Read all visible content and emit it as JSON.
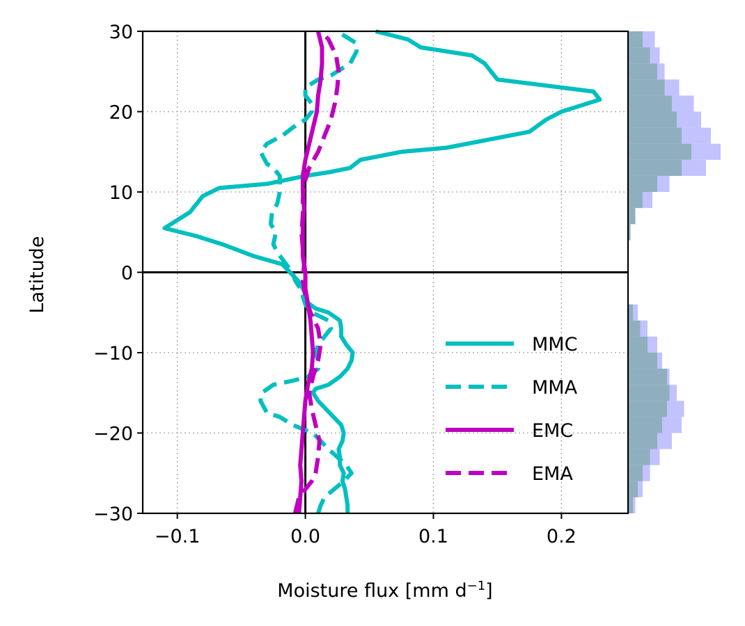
{
  "chart_data": {
    "type": "line",
    "xlabel": "Moisture flux [mm d",
    "xlabel_sup": "−1",
    "xlabel_end": "]",
    "ylabel": "Latitude",
    "xlim": [
      -0.127,
      0.252
    ],
    "ylim": [
      -30,
      30
    ],
    "xticks": [
      -0.1,
      0.0,
      0.1,
      0.2
    ],
    "xtick_labels": [
      "−0.1",
      "0.0",
      "0.1",
      "0.2"
    ],
    "yticks": [
      -30,
      -20,
      -10,
      0,
      10,
      20,
      30
    ],
    "ytick_labels": [
      "−30",
      "−20",
      "−10",
      "0",
      "10",
      "20",
      "30"
    ],
    "grid": true,
    "legend_position": "lower-right",
    "reference_lines": {
      "x": 0,
      "y": 0
    },
    "series": [
      {
        "name": "MMC",
        "color": "#00bfbf",
        "style": "solid",
        "points": [
          [
            0.033,
            -30
          ],
          [
            0.033,
            -29
          ],
          [
            0.032,
            -28
          ],
          [
            0.031,
            -27
          ],
          [
            0.029,
            -26
          ],
          [
            0.03,
            -25
          ],
          [
            0.027,
            -24
          ],
          [
            0.027,
            -23
          ],
          [
            0.026,
            -22
          ],
          [
            0.029,
            -21
          ],
          [
            0.03,
            -20
          ],
          [
            0.028,
            -19
          ],
          [
            0.022,
            -18
          ],
          [
            0.016,
            -17
          ],
          [
            0.01,
            -16
          ],
          [
            0.006,
            -15
          ],
          [
            0.008,
            -14.5
          ],
          [
            0.018,
            -14
          ],
          [
            0.027,
            -13
          ],
          [
            0.033,
            -12
          ],
          [
            0.036,
            -11
          ],
          [
            0.037,
            -10
          ],
          [
            0.032,
            -9
          ],
          [
            0.028,
            -8
          ],
          [
            0.028,
            -7
          ],
          [
            0.027,
            -6
          ],
          [
            0.018,
            -5
          ],
          [
            0.008,
            -4.5
          ],
          [
            0.002,
            -3.8
          ],
          [
            0.001,
            -3
          ],
          [
            -0.002,
            -2
          ],
          [
            -0.006,
            -1
          ],
          [
            -0.012,
            0
          ],
          [
            -0.018,
            1
          ],
          [
            -0.04,
            2
          ],
          [
            -0.065,
            3.5
          ],
          [
            -0.085,
            4.5
          ],
          [
            -0.11,
            5.5
          ],
          [
            -0.1,
            6.5
          ],
          [
            -0.09,
            7.5
          ],
          [
            -0.085,
            8.5
          ],
          [
            -0.08,
            9.5
          ],
          [
            -0.067,
            10.5
          ],
          [
            -0.03,
            11
          ],
          [
            0.0,
            12
          ],
          [
            0.02,
            12.5
          ],
          [
            0.035,
            13
          ],
          [
            0.043,
            14
          ],
          [
            0.075,
            15
          ],
          [
            0.11,
            15.5
          ],
          [
            0.175,
            17.5
          ],
          [
            0.188,
            19
          ],
          [
            0.2,
            20
          ],
          [
            0.23,
            21.5
          ],
          [
            0.225,
            22.5
          ],
          [
            0.15,
            24
          ],
          [
            0.145,
            25
          ],
          [
            0.14,
            26
          ],
          [
            0.13,
            27
          ],
          [
            0.09,
            28
          ],
          [
            0.08,
            29
          ],
          [
            0.055,
            30
          ]
        ]
      },
      {
        "name": "MMA",
        "color": "#00bfbf",
        "style": "dashed",
        "points": [
          [
            0.01,
            -30
          ],
          [
            0.012,
            -29
          ],
          [
            0.015,
            -28
          ],
          [
            0.03,
            -26
          ],
          [
            0.036,
            -25
          ],
          [
            0.032,
            -24
          ],
          [
            0.025,
            -23
          ],
          [
            0.018,
            -22
          ],
          [
            0.012,
            -21
          ],
          [
            0.006,
            -20
          ],
          [
            -0.01,
            -19
          ],
          [
            -0.02,
            -18
          ],
          [
            -0.03,
            -17.5
          ],
          [
            -0.035,
            -16
          ],
          [
            -0.034,
            -15
          ],
          [
            -0.025,
            -14
          ],
          [
            -0.01,
            -13.5
          ],
          [
            0.002,
            -13
          ],
          [
            0.01,
            -12
          ],
          [
            0.01,
            -11
          ],
          [
            0.008,
            -10
          ],
          [
            0.01,
            -9
          ],
          [
            0.015,
            -8
          ],
          [
            0.02,
            -7
          ],
          [
            0.018,
            -6
          ],
          [
            0.005,
            -5
          ],
          [
            0.0,
            -4
          ],
          [
            -0.002,
            -3
          ],
          [
            -0.004,
            -2
          ],
          [
            -0.008,
            -1
          ],
          [
            -0.01,
            0
          ],
          [
            -0.015,
            1
          ],
          [
            -0.022,
            2.5
          ],
          [
            -0.025,
            3.5
          ],
          [
            -0.023,
            5
          ],
          [
            -0.027,
            6
          ],
          [
            -0.026,
            7.5
          ],
          [
            -0.022,
            8.5
          ],
          [
            -0.02,
            10
          ],
          [
            -0.02,
            11
          ],
          [
            -0.02,
            12
          ],
          [
            -0.025,
            13
          ],
          [
            -0.03,
            13.5
          ],
          [
            -0.035,
            15
          ],
          [
            -0.03,
            16
          ],
          [
            -0.018,
            17
          ],
          [
            -0.01,
            18
          ],
          [
            0.0,
            19
          ],
          [
            0.005,
            20
          ],
          [
            0.005,
            21
          ],
          [
            0.0,
            22
          ],
          [
            0.0,
            23
          ],
          [
            0.01,
            24
          ],
          [
            0.02,
            24.5
          ],
          [
            0.035,
            26
          ],
          [
            0.04,
            27.5
          ],
          [
            0.04,
            28.5
          ],
          [
            0.03,
            29.5
          ],
          [
            0.025,
            30
          ]
        ]
      },
      {
        "name": "EMC",
        "color": "#bf00bf",
        "style": "solid",
        "points": [
          [
            -0.005,
            -30
          ],
          [
            -0.004,
            -28
          ],
          [
            -0.003,
            -26
          ],
          [
            -0.004,
            -24
          ],
          [
            -0.003,
            -22
          ],
          [
            -0.002,
            -20
          ],
          [
            -0.001,
            -18
          ],
          [
            0.0,
            -16
          ],
          [
            0.002,
            -14
          ],
          [
            0.005,
            -12
          ],
          [
            0.006,
            -10
          ],
          [
            0.005,
            -8
          ],
          [
            0.004,
            -6
          ],
          [
            0.002,
            -4
          ],
          [
            0.0,
            -2
          ],
          [
            0.0,
            0
          ],
          [
            -0.002,
            2
          ],
          [
            -0.002,
            4
          ],
          [
            -0.002,
            6
          ],
          [
            -0.001,
            8
          ],
          [
            -0.002,
            10
          ],
          [
            -0.002,
            12
          ],
          [
            0.0,
            14
          ],
          [
            0.003,
            16
          ],
          [
            0.006,
            18
          ],
          [
            0.009,
            20
          ],
          [
            0.01,
            22
          ],
          [
            0.012,
            24
          ],
          [
            0.013,
            26
          ],
          [
            0.013,
            28
          ],
          [
            0.01,
            30
          ]
        ]
      },
      {
        "name": "EMA",
        "color": "#bf00bf",
        "style": "dashed",
        "points": [
          [
            -0.008,
            -30
          ],
          [
            -0.005,
            -28
          ],
          [
            0.0,
            -27
          ],
          [
            0.005,
            -26
          ],
          [
            0.008,
            -25
          ],
          [
            0.01,
            -23
          ],
          [
            0.011,
            -21
          ],
          [
            0.008,
            -19
          ],
          [
            0.005,
            -17
          ],
          [
            0.003,
            -15
          ],
          [
            0.006,
            -13
          ],
          [
            0.01,
            -11
          ],
          [
            0.012,
            -9
          ],
          [
            0.01,
            -7
          ],
          [
            0.004,
            -5
          ],
          [
            0.0,
            -3
          ],
          [
            -0.002,
            -1
          ],
          [
            -0.001,
            1
          ],
          [
            -0.002,
            3
          ],
          [
            -0.003,
            5
          ],
          [
            -0.002,
            7
          ],
          [
            -0.002,
            9
          ],
          [
            -0.001,
            11
          ],
          [
            0.003,
            13
          ],
          [
            0.01,
            15
          ],
          [
            0.015,
            17
          ],
          [
            0.02,
            19
          ],
          [
            0.023,
            21
          ],
          [
            0.025,
            23
          ],
          [
            0.026,
            25
          ],
          [
            0.024,
            27
          ],
          [
            0.018,
            29
          ],
          [
            0.012,
            30
          ]
        ]
      }
    ],
    "marginal_histograms": {
      "colors": [
        "#8fafbf",
        "#c2c2ff"
      ],
      "bins_lat": [
        -29,
        -27,
        -25,
        -23,
        -21,
        -19,
        -17,
        -15,
        -13,
        -11,
        -9,
        -7,
        -5,
        -3,
        -1,
        1,
        3,
        5,
        7,
        9,
        11,
        13,
        15,
        17,
        19,
        21,
        23,
        25,
        27,
        29
      ],
      "front_counts": [
        2,
        4,
        6,
        9,
        12,
        14,
        16,
        17,
        16,
        12,
        8,
        5,
        2,
        0,
        0,
        0,
        0,
        1,
        3,
        6,
        12,
        22,
        26,
        22,
        20,
        18,
        15,
        12,
        9,
        6
      ],
      "back_counts": [
        3,
        6,
        9,
        13,
        18,
        22,
        23,
        20,
        17,
        14,
        12,
        8,
        4,
        0,
        0,
        0,
        0,
        1,
        3,
        10,
        17,
        32,
        38,
        34,
        30,
        27,
        21,
        15,
        13,
        11
      ]
    }
  }
}
